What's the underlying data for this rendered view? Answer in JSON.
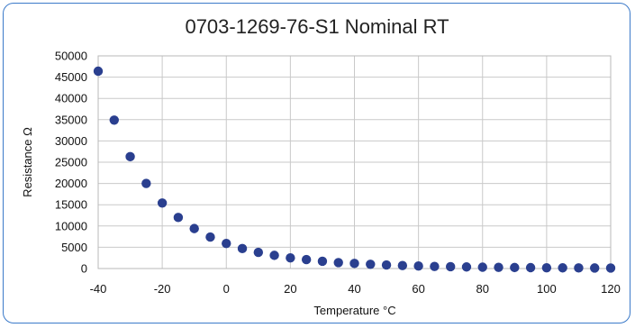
{
  "chart_data": {
    "type": "scatter",
    "title": "0703-1269-76-S1 Nominal RT",
    "xlabel": "Temperature °C",
    "ylabel": "Resistance Ω",
    "xlim": [
      -40,
      120
    ],
    "ylim": [
      0,
      50000
    ],
    "xticks": [
      -40,
      -20,
      0,
      20,
      40,
      60,
      80,
      100,
      120
    ],
    "yticks": [
      0,
      5000,
      10000,
      15000,
      20000,
      25000,
      30000,
      35000,
      40000,
      45000,
      50000
    ],
    "grid": true,
    "marker_color": "#2a3f8f",
    "series": [
      {
        "x": [
          -40,
          -35,
          -30,
          -25,
          -20,
          -15,
          -10,
          -5,
          0,
          5,
          10,
          15,
          20,
          25,
          30,
          35,
          40,
          45,
          50,
          55,
          60,
          65,
          70,
          75,
          80,
          85,
          90,
          95,
          100,
          105,
          110,
          115,
          120
        ],
        "y": [
          46400,
          34900,
          26300,
          20000,
          15400,
          12000,
          9400,
          7400,
          5900,
          4700,
          3800,
          3100,
          2500,
          2100,
          1700,
          1400,
          1200,
          1000,
          830,
          700,
          590,
          500,
          430,
          370,
          320,
          280,
          240,
          210,
          180,
          160,
          140,
          130,
          110
        ]
      }
    ]
  }
}
